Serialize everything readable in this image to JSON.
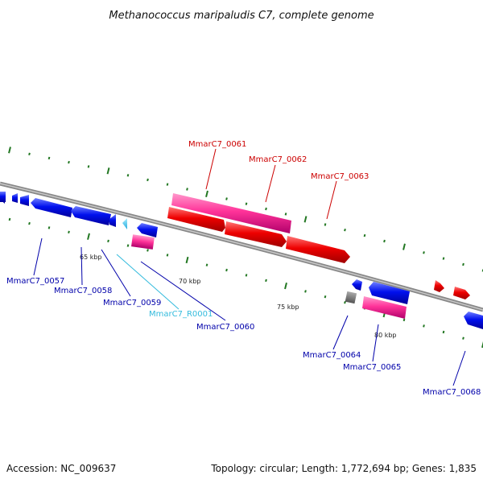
{
  "title": "Methanococcus maripaludis C7, complete genome",
  "footer": {
    "accession": "Accession: NC_009637",
    "summary": "Topology: circular; Length: 1,772,694 bp; Genes: 1,835"
  },
  "scale_labels": [
    "65 kbp",
    "70 kbp",
    "75 kbp",
    "80 kbp"
  ],
  "gene_labels": {
    "g0057": "MmarC7_0057",
    "g0058": "MmarC7_0058",
    "g0059": "MmarC7_0059",
    "gR0001": "MmarC7_R0001",
    "g0060": "MmarC7_0060",
    "g0061": "MmarC7_0061",
    "g0062": "MmarC7_0062",
    "g0063": "MmarC7_0063",
    "g0064": "MmarC7_0064",
    "g0065": "MmarC7_0065",
    "g0068": "MmarC7_0068"
  },
  "colors": {
    "reverse_gene": "#0000ee",
    "forward_gene": "#ff0000",
    "pink_gene": "#ff3399",
    "rna_gene": "#33ccff",
    "other_gene": "#777777",
    "backbone": "#888888",
    "tick": "#227722",
    "label_red": "#cc0000",
    "label_blue": "#0000aa",
    "label_cyan": "#33bbdd"
  }
}
